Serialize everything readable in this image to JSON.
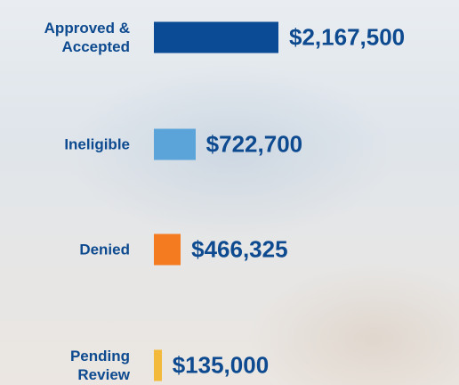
{
  "chart_data": {
    "type": "bar",
    "orientation": "horizontal",
    "categories": [
      "Approved & Accepted",
      "Ineligible",
      "Denied",
      "Pending Review"
    ],
    "values": [
      2167500,
      722700,
      466325,
      135000
    ],
    "value_labels": [
      "$2,167,500",
      "$722,700",
      "$466,325",
      "$135,000"
    ],
    "colors": [
      "#0b4a94",
      "#5ba4da",
      "#f47b20",
      "#f2b93b"
    ]
  }
}
